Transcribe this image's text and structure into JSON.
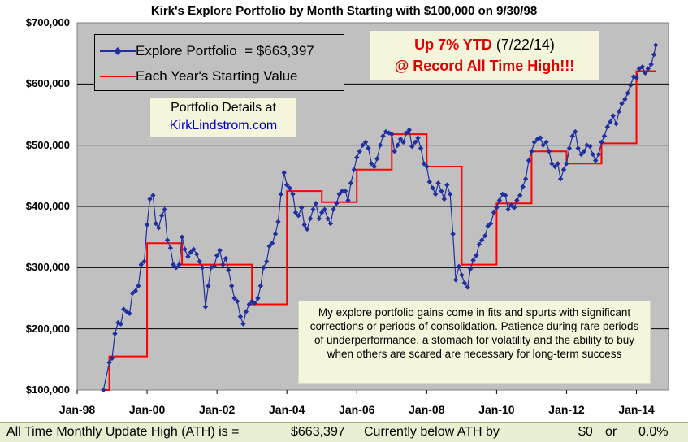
{
  "chart_data": {
    "type": "line",
    "title": "Kirk's Explore Portfolio by Month Starting with $100,000 on 9/30/98",
    "ylim": [
      100000,
      700000
    ],
    "xlim": [
      1998.0,
      2014.917
    ],
    "y_tick_labels": [
      "$100,000",
      "$200,000",
      "$300,000",
      "$400,000",
      "$500,000",
      "$600,000",
      "$700,000"
    ],
    "x_tick_labels": [
      "Jan-98",
      "Jan-00",
      "Jan-02",
      "Jan-04",
      "Jan-06",
      "Jan-08",
      "Jan-10",
      "Jan-12",
      "Jan-14"
    ],
    "grid": "horizontal",
    "legend_position": "top-left",
    "series": [
      {
        "name": "Explore Portfolio",
        "legend_label": "Explore Portfolio",
        "legend_value": "=  $663,397",
        "color": "#1f2fa0",
        "marker": "diamond",
        "points": [
          [
            1998.75,
            100000
          ],
          [
            1998.92,
            145000
          ],
          [
            1999.0,
            152000
          ],
          [
            1999.08,
            192000
          ],
          [
            1999.17,
            210000
          ],
          [
            1999.25,
            208000
          ],
          [
            1999.33,
            232000
          ],
          [
            1999.42,
            228000
          ],
          [
            1999.5,
            225000
          ],
          [
            1999.58,
            258000
          ],
          [
            1999.67,
            262000
          ],
          [
            1999.75,
            270000
          ],
          [
            1999.83,
            305000
          ],
          [
            1999.92,
            310000
          ],
          [
            2000.0,
            370000
          ],
          [
            2000.08,
            412000
          ],
          [
            2000.17,
            418000
          ],
          [
            2000.25,
            372000
          ],
          [
            2000.33,
            365000
          ],
          [
            2000.42,
            385000
          ],
          [
            2000.5,
            395000
          ],
          [
            2000.58,
            345000
          ],
          [
            2000.67,
            332000
          ],
          [
            2000.75,
            305000
          ],
          [
            2000.83,
            300000
          ],
          [
            2000.92,
            305000
          ],
          [
            2001.0,
            350000
          ],
          [
            2001.08,
            330000
          ],
          [
            2001.17,
            318000
          ],
          [
            2001.25,
            325000
          ],
          [
            2001.33,
            330000
          ],
          [
            2001.42,
            322000
          ],
          [
            2001.5,
            310000
          ],
          [
            2001.58,
            300000
          ],
          [
            2001.67,
            236000
          ],
          [
            2001.75,
            270000
          ],
          [
            2001.83,
            300000
          ],
          [
            2001.92,
            302000
          ],
          [
            2002.0,
            320000
          ],
          [
            2002.08,
            328000
          ],
          [
            2002.17,
            305000
          ],
          [
            2002.25,
            315000
          ],
          [
            2002.33,
            296000
          ],
          [
            2002.42,
            270000
          ],
          [
            2002.5,
            250000
          ],
          [
            2002.58,
            245000
          ],
          [
            2002.67,
            220000
          ],
          [
            2002.75,
            208000
          ],
          [
            2002.83,
            228000
          ],
          [
            2002.92,
            240000
          ],
          [
            2003.0,
            245000
          ],
          [
            2003.08,
            242000
          ],
          [
            2003.17,
            250000
          ],
          [
            2003.25,
            270000
          ],
          [
            2003.33,
            300000
          ],
          [
            2003.42,
            310000
          ],
          [
            2003.5,
            335000
          ],
          [
            2003.58,
            340000
          ],
          [
            2003.67,
            355000
          ],
          [
            2003.75,
            375000
          ],
          [
            2003.83,
            420000
          ],
          [
            2003.92,
            455000
          ],
          [
            2004.0,
            435000
          ],
          [
            2004.08,
            430000
          ],
          [
            2004.17,
            420000
          ],
          [
            2004.25,
            390000
          ],
          [
            2004.33,
            385000
          ],
          [
            2004.42,
            398000
          ],
          [
            2004.5,
            370000
          ],
          [
            2004.58,
            363000
          ],
          [
            2004.67,
            380000
          ],
          [
            2004.75,
            395000
          ],
          [
            2004.83,
            405000
          ],
          [
            2004.92,
            380000
          ],
          [
            2005.0,
            390000
          ],
          [
            2005.08,
            395000
          ],
          [
            2005.17,
            380000
          ],
          [
            2005.25,
            372000
          ],
          [
            2005.33,
            395000
          ],
          [
            2005.42,
            405000
          ],
          [
            2005.5,
            420000
          ],
          [
            2005.58,
            425000
          ],
          [
            2005.67,
            425000
          ],
          [
            2005.75,
            410000
          ],
          [
            2005.83,
            438000
          ],
          [
            2005.92,
            460000
          ],
          [
            2006.0,
            480000
          ],
          [
            2006.08,
            490000
          ],
          [
            2006.17,
            500000
          ],
          [
            2006.25,
            505000
          ],
          [
            2006.33,
            495000
          ],
          [
            2006.42,
            470000
          ],
          [
            2006.5,
            465000
          ],
          [
            2006.58,
            478000
          ],
          [
            2006.67,
            500000
          ],
          [
            2006.75,
            515000
          ],
          [
            2006.83,
            522000
          ],
          [
            2006.92,
            520000
          ],
          [
            2007.0,
            518000
          ],
          [
            2007.08,
            490000
          ],
          [
            2007.17,
            500000
          ],
          [
            2007.25,
            510000
          ],
          [
            2007.33,
            505000
          ],
          [
            2007.42,
            520000
          ],
          [
            2007.5,
            525000
          ],
          [
            2007.58,
            498000
          ],
          [
            2007.67,
            505000
          ],
          [
            2007.75,
            512000
          ],
          [
            2007.83,
            495000
          ],
          [
            2007.92,
            470000
          ],
          [
            2008.0,
            465000
          ],
          [
            2008.08,
            440000
          ],
          [
            2008.17,
            430000
          ],
          [
            2008.25,
            420000
          ],
          [
            2008.33,
            438000
          ],
          [
            2008.42,
            425000
          ],
          [
            2008.5,
            412000
          ],
          [
            2008.58,
            435000
          ],
          [
            2008.67,
            420000
          ],
          [
            2008.75,
            355000
          ],
          [
            2008.83,
            280000
          ],
          [
            2008.92,
            302000
          ],
          [
            2009.0,
            288000
          ],
          [
            2009.08,
            275000
          ],
          [
            2009.17,
            268000
          ],
          [
            2009.25,
            298000
          ],
          [
            2009.33,
            312000
          ],
          [
            2009.42,
            320000
          ],
          [
            2009.5,
            338000
          ],
          [
            2009.58,
            345000
          ],
          [
            2009.67,
            352000
          ],
          [
            2009.75,
            368000
          ],
          [
            2009.83,
            372000
          ],
          [
            2009.92,
            390000
          ],
          [
            2010.0,
            398000
          ],
          [
            2010.08,
            410000
          ],
          [
            2010.17,
            420000
          ],
          [
            2010.25,
            418000
          ],
          [
            2010.33,
            395000
          ],
          [
            2010.42,
            402000
          ],
          [
            2010.5,
            398000
          ],
          [
            2010.58,
            410000
          ],
          [
            2010.67,
            418000
          ],
          [
            2010.75,
            432000
          ],
          [
            2010.83,
            445000
          ],
          [
            2010.92,
            475000
          ],
          [
            2011.0,
            490000
          ],
          [
            2011.08,
            505000
          ],
          [
            2011.17,
            510000
          ],
          [
            2011.25,
            512000
          ],
          [
            2011.33,
            500000
          ],
          [
            2011.42,
            505000
          ],
          [
            2011.5,
            490000
          ],
          [
            2011.58,
            470000
          ],
          [
            2011.67,
            465000
          ],
          [
            2011.75,
            470000
          ],
          [
            2011.83,
            445000
          ],
          [
            2011.92,
            460000
          ],
          [
            2012.0,
            470000
          ],
          [
            2012.08,
            495000
          ],
          [
            2012.17,
            515000
          ],
          [
            2012.25,
            522000
          ],
          [
            2012.33,
            495000
          ],
          [
            2012.42,
            485000
          ],
          [
            2012.5,
            490000
          ],
          [
            2012.58,
            500000
          ],
          [
            2012.67,
            498000
          ],
          [
            2012.75,
            485000
          ],
          [
            2012.83,
            475000
          ],
          [
            2012.92,
            485000
          ],
          [
            2013.0,
            505000
          ],
          [
            2013.08,
            515000
          ],
          [
            2013.17,
            530000
          ],
          [
            2013.25,
            538000
          ],
          [
            2013.33,
            548000
          ],
          [
            2013.42,
            535000
          ],
          [
            2013.5,
            555000
          ],
          [
            2013.58,
            568000
          ],
          [
            2013.67,
            575000
          ],
          [
            2013.75,
            585000
          ],
          [
            2013.83,
            598000
          ],
          [
            2013.92,
            612000
          ],
          [
            2014.0,
            610000
          ],
          [
            2014.08,
            625000
          ],
          [
            2014.17,
            628000
          ],
          [
            2014.25,
            618000
          ],
          [
            2014.33,
            625000
          ],
          [
            2014.42,
            632000
          ],
          [
            2014.5,
            648000
          ],
          [
            2014.55,
            663397
          ]
        ]
      },
      {
        "name": "Each Year's Starting Value",
        "legend_label": "Each Year's Starting Value",
        "color": "#ff0000",
        "marker": "none",
        "points": [
          [
            1998.75,
            100000
          ],
          [
            1998.92,
            100000
          ],
          [
            1998.92,
            155000
          ],
          [
            2000.0,
            155000
          ],
          [
            2000.0,
            340000
          ],
          [
            2001.0,
            340000
          ],
          [
            2001.0,
            305000
          ],
          [
            2003.0,
            305000
          ],
          [
            2003.0,
            240000
          ],
          [
            2004.0,
            240000
          ],
          [
            2004.0,
            425000
          ],
          [
            2005.0,
            425000
          ],
          [
            2005.0,
            407000
          ],
          [
            2006.0,
            407000
          ],
          [
            2006.0,
            460000
          ],
          [
            2007.0,
            460000
          ],
          [
            2007.0,
            518000
          ],
          [
            2008.0,
            518000
          ],
          [
            2008.0,
            465000
          ],
          [
            2009.0,
            465000
          ],
          [
            2009.0,
            305000
          ],
          [
            2010.0,
            305000
          ],
          [
            2010.0,
            405000
          ],
          [
            2011.0,
            405000
          ],
          [
            2011.0,
            490000
          ],
          [
            2012.0,
            490000
          ],
          [
            2012.0,
            470000
          ],
          [
            2013.0,
            470000
          ],
          [
            2013.0,
            503000
          ],
          [
            2014.0,
            503000
          ],
          [
            2014.0,
            621000
          ],
          [
            2014.55,
            621000
          ]
        ]
      }
    ]
  },
  "annotations": {
    "ytd_main": "Up 7% YTD",
    "ytd_date": "(7/22/14)",
    "record": "@ Record All Time High!!!",
    "details_line1": "Portfolio Details at",
    "details_link": "KirkLindstrom.com",
    "note": "My explore portfolio gains come in fits and spurts with significant corrections or periods of consolidation.  Patience during rare periods of underperformance,  a stomach for volatility and the ability to buy when others are scared are necessary for long-term success"
  },
  "footer": {
    "label": "All Time Monthly Update High (ATH) is =",
    "ath_value": "$663,397",
    "below_label": "Currently below ATH by",
    "below_amount": "$0",
    "or": "or",
    "below_pct": "0.0%"
  },
  "colors": {
    "plot_background": "#c0c0c0",
    "callout_background": "#f5f5dc",
    "footer_background": "#e6efd1",
    "accent_red": "#e00000",
    "link_blue": "#0000cc"
  }
}
